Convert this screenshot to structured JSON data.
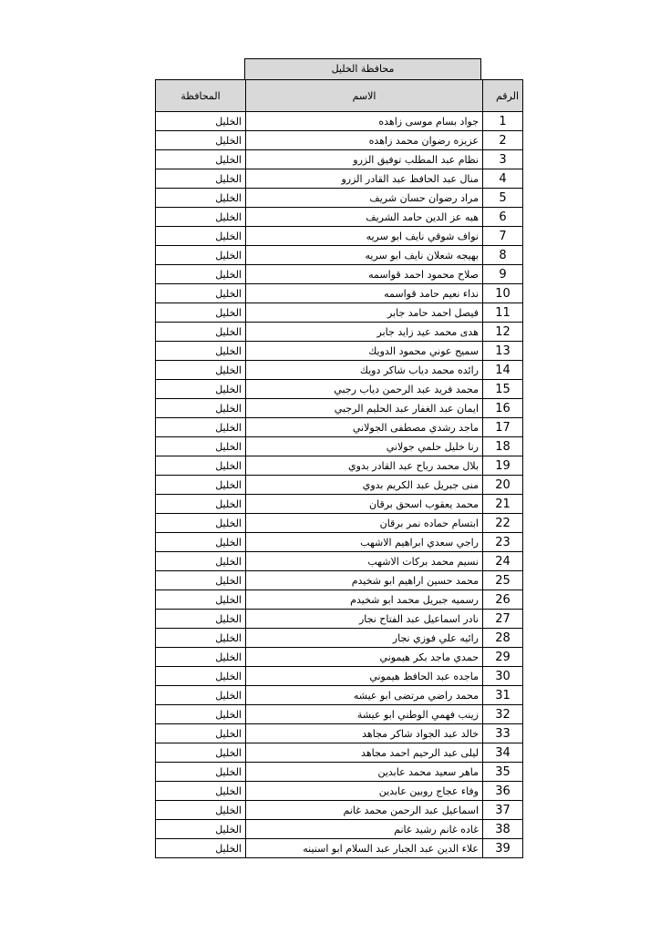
{
  "title": "محافظة الخليل",
  "headers": {
    "number": "الرقم",
    "name": "الاسم",
    "governorate": "المحافظة"
  },
  "rows": [
    {
      "n": "1",
      "name": "جواد بسام موسى زاهده",
      "gov": "الخليل"
    },
    {
      "n": "2",
      "name": "عزيزه رضوان محمد زاهده",
      "gov": "الخليل"
    },
    {
      "n": "3",
      "name": "نظام عبد المطلب توفيق الزرو",
      "gov": "الخليل"
    },
    {
      "n": "4",
      "name": "منال عبد الحافظ عبد القادر الزرو",
      "gov": "الخليل"
    },
    {
      "n": "5",
      "name": "مراد رضوان حسان شريف",
      "gov": "الخليل"
    },
    {
      "n": "6",
      "name": "هبه عز الدين حامد الشريف",
      "gov": "الخليل"
    },
    {
      "n": "7",
      "name": "نواف شوقي نايف ابو سريه",
      "gov": "الخليل"
    },
    {
      "n": "8",
      "name": "بهيجه شعلان نايف ابو سريه",
      "gov": "الخليل"
    },
    {
      "n": "9",
      "name": "صلاح محمود احمد قواسمه",
      "gov": "الخليل"
    },
    {
      "n": "10",
      "name": "نداء نعيم حامد قواسمه",
      "gov": "الخليل"
    },
    {
      "n": "11",
      "name": "فيصل احمد حامد جابر",
      "gov": "الخليل"
    },
    {
      "n": "12",
      "name": "هدى محمد عيد زايد جابر",
      "gov": "الخليل"
    },
    {
      "n": "13",
      "name": "سميح عوني محمود الدويك",
      "gov": "الخليل"
    },
    {
      "n": "14",
      "name": "رائده محمد دياب شاكر دويك",
      "gov": "الخليل"
    },
    {
      "n": "15",
      "name": "محمد فريد عبد الرحمن دياب رجبي",
      "gov": "الخليل"
    },
    {
      "n": "16",
      "name": "ايمان عبد الغفار عبد الحليم الرجبي",
      "gov": "الخليل"
    },
    {
      "n": "17",
      "name": "ماجد رشدي مصطفى الجولاني",
      "gov": "الخليل"
    },
    {
      "n": "18",
      "name": "رنا خليل حلمي جولاني",
      "gov": "الخليل"
    },
    {
      "n": "19",
      "name": "بلال محمد رباح عبد القادر بدوي",
      "gov": "الخليل"
    },
    {
      "n": "20",
      "name": "منى جبريل عبد الكريم بدوي",
      "gov": "الخليل"
    },
    {
      "n": "21",
      "name": "محمد يعقوب اسحق برقان",
      "gov": "الخليل"
    },
    {
      "n": "22",
      "name": "ابتسام حماده نمر برقان",
      "gov": "الخليل"
    },
    {
      "n": "23",
      "name": "راجي سعدي ابراهيم الاشهب",
      "gov": "الخليل"
    },
    {
      "n": "24",
      "name": "نسيم محمد بركات الاشهب",
      "gov": "الخليل"
    },
    {
      "n": "25",
      "name": "محمد حسين اراهيم ابو شخيدم",
      "gov": "الخليل"
    },
    {
      "n": "26",
      "name": "رسميه جبريل محمد ابو شخيدم",
      "gov": "الخليل"
    },
    {
      "n": "27",
      "name": "نادر اسماعيل عبد الفتاح نجار",
      "gov": "الخليل"
    },
    {
      "n": "28",
      "name": "رائيه علي فوزي نجار",
      "gov": "الخليل"
    },
    {
      "n": "29",
      "name": "حمدي ماجد بكر هيموني",
      "gov": "الخليل"
    },
    {
      "n": "30",
      "name": "ماجده عبد الحافظ هيموني",
      "gov": "الخليل"
    },
    {
      "n": "31",
      "name": "محمد راضي مرتضى ابو عيشه",
      "gov": "الخليل"
    },
    {
      "n": "32",
      "name": "زينب فهمي الوطني ابو عيشة",
      "gov": "الخليل"
    },
    {
      "n": "33",
      "name": "خالد عبد الجواد شاكر مجاهد",
      "gov": "الخليل"
    },
    {
      "n": "34",
      "name": "ليلى عبد الرحيم احمد مجاهد",
      "gov": "الخليل"
    },
    {
      "n": "35",
      "name": "ماهر سعيد محمد عابدين",
      "gov": "الخليل"
    },
    {
      "n": "36",
      "name": "وفاء عجاج روبين عابدين",
      "gov": "الخليل"
    },
    {
      "n": "37",
      "name": "اسماعيل عبد الرحمن محمد غانم",
      "gov": "الخليل"
    },
    {
      "n": "38",
      "name": "غاده غانم رشيد غانم",
      "gov": "الخليل"
    },
    {
      "n": "39",
      "name": "علاء الدين عبد الجبار عبد السلام ابو اسنينه",
      "gov": "الخليل"
    }
  ]
}
